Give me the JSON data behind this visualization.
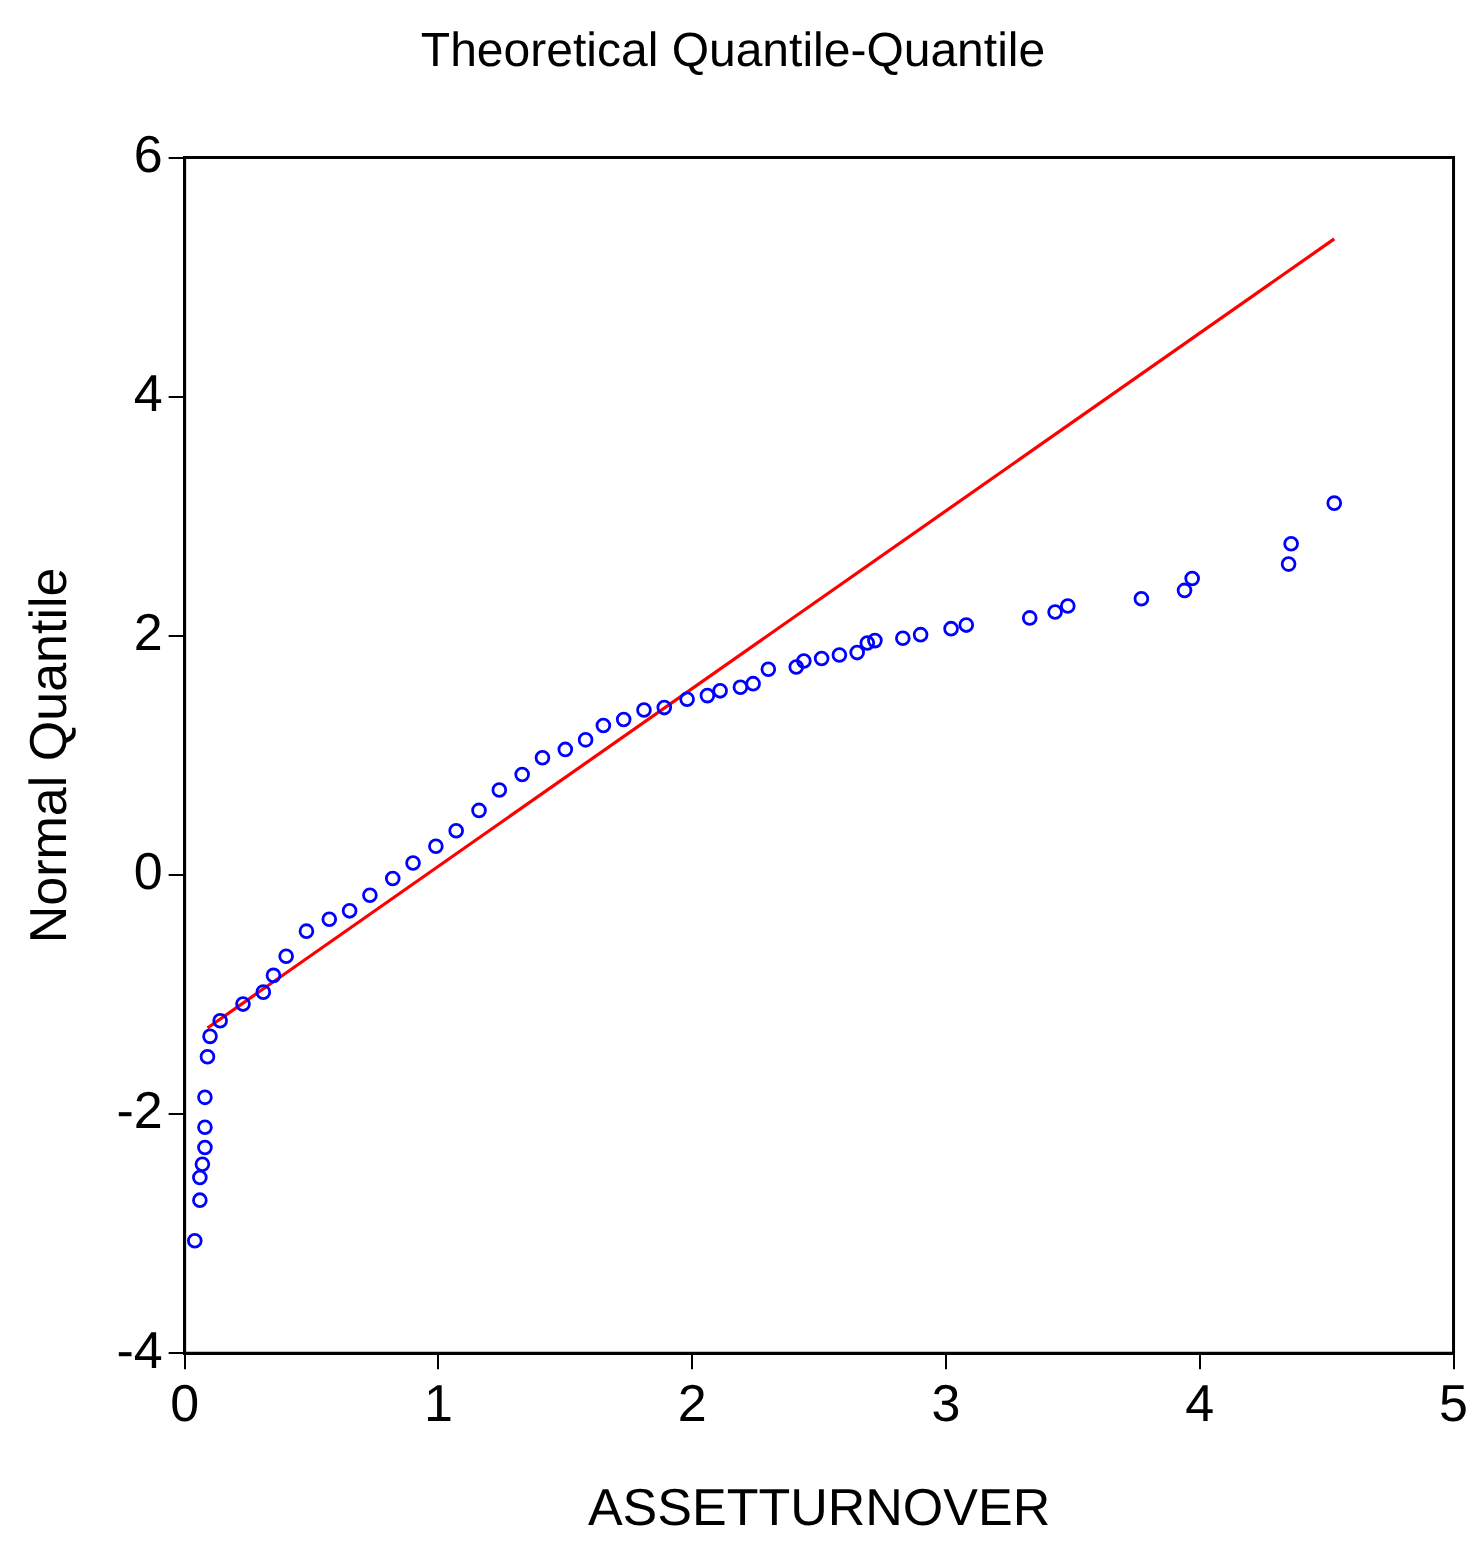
{
  "chart_data": {
    "type": "scatter",
    "title": "Theoretical Quantile-Quantile",
    "xlabel": "ASSETTURNOVER",
    "ylabel": "Normal Quantile",
    "xlim": [
      0,
      5
    ],
    "xticks": [
      0,
      1,
      2,
      3,
      4,
      5
    ],
    "ylim": [
      -4,
      6
    ],
    "yticks": [
      -4,
      -2,
      0,
      2,
      4,
      6
    ],
    "grid": false,
    "legend": false,
    "series": [
      {
        "marker": "circle",
        "color": "#0000ff",
        "x": [
          0.04,
          0.06,
          0.06,
          0.07,
          0.08,
          0.08,
          0.08,
          0.09,
          0.1,
          0.14,
          0.23,
          0.31,
          0.35,
          0.4,
          0.48,
          0.57,
          0.65,
          0.73,
          0.82,
          0.9,
          0.99,
          1.07,
          1.16,
          1.24,
          1.33,
          1.41,
          1.5,
          1.58,
          1.65,
          1.73,
          1.81,
          1.89,
          1.98,
          2.06,
          2.11,
          2.19,
          2.24,
          2.3,
          2.41,
          2.44,
          2.51,
          2.58,
          2.65,
          2.69,
          2.72,
          2.83,
          2.9,
          3.02,
          3.08,
          3.33,
          3.43,
          3.48,
          3.77,
          3.94,
          3.97,
          4.35,
          4.36,
          4.53
        ],
        "values": [
          -3.06,
          -2.72,
          -2.53,
          -2.42,
          -2.28,
          -2.11,
          -1.86,
          -1.52,
          -1.35,
          -1.22,
          -1.08,
          -0.98,
          -0.84,
          -0.68,
          -0.47,
          -0.37,
          -0.3,
          -0.17,
          -0.03,
          0.1,
          0.24,
          0.37,
          0.54,
          0.71,
          0.84,
          0.98,
          1.05,
          1.13,
          1.25,
          1.3,
          1.38,
          1.4,
          1.47,
          1.5,
          1.54,
          1.57,
          1.6,
          1.72,
          1.74,
          1.79,
          1.81,
          1.84,
          1.86,
          1.94,
          1.96,
          1.98,
          2.01,
          2.06,
          2.09,
          2.15,
          2.2,
          2.25,
          2.31,
          2.38,
          2.48,
          2.6,
          2.77,
          3.11
        ]
      },
      {
        "type": "line",
        "color": "#ff0000",
        "x": [
          0.09,
          4.53
        ],
        "values": [
          -1.28,
          5.32
        ]
      }
    ]
  }
}
